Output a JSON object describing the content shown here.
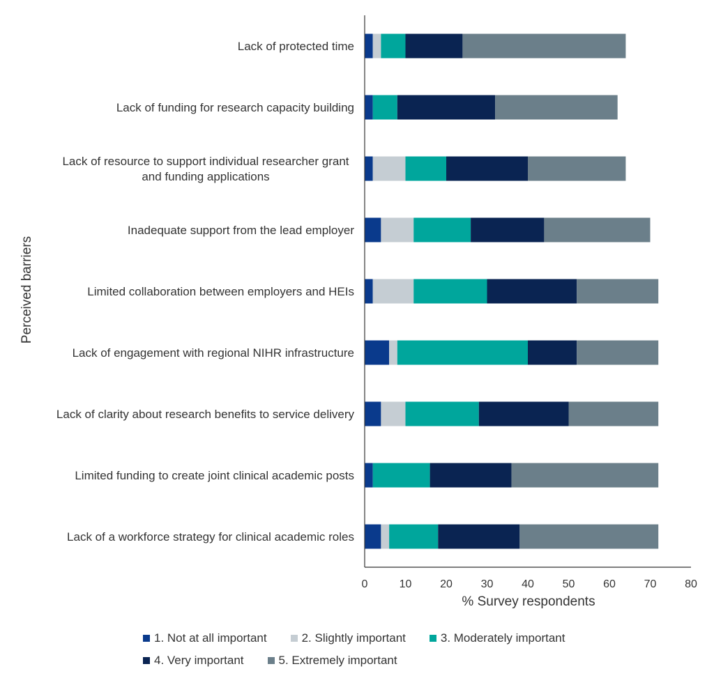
{
  "chart_data": {
    "type": "bar",
    "orientation": "horizontal",
    "stacked": true,
    "title": "",
    "xlabel": "% Survey respondents",
    "ylabel": "Perceived barriers",
    "xlim": [
      0,
      80
    ],
    "xticks": [
      0,
      10,
      20,
      30,
      40,
      50,
      60,
      70,
      80
    ],
    "grid": false,
    "legend_position": "bottom",
    "categories": [
      "Lack of protected time",
      "Lack of funding for research capacity building",
      [
        "Lack of resource to support individual researcher grant",
        "and funding applications"
      ],
      "Inadequate support from the lead employer",
      "Limited collaboration between employers and HEIs",
      "Lack of engagement with regional NIHR infrastructure",
      "Lack of clarity about research benefits to service delivery",
      "Limited funding to create joint clinical academic posts",
      "Lack of a workforce strategy for clinical academic roles"
    ],
    "series": [
      {
        "name": "1. Not at all important",
        "color": "#0a3a8c",
        "values": [
          2,
          2,
          2,
          4,
          2,
          6,
          4,
          2,
          4
        ]
      },
      {
        "name": "2. Slightly important",
        "color": "#c5cdd3",
        "values": [
          2,
          0,
          8,
          8,
          10,
          2,
          6,
          0,
          2
        ]
      },
      {
        "name": "3. Moderately important",
        "color": "#00a69c",
        "values": [
          6,
          6,
          10,
          14,
          18,
          32,
          18,
          14,
          12
        ]
      },
      {
        "name": "4. Very important",
        "color": "#0a2452",
        "values": [
          14,
          24,
          20,
          18,
          22,
          12,
          22,
          20,
          20
        ]
      },
      {
        "name": "5. Extremely important",
        "color": "#6b7f8a",
        "values": [
          40,
          30,
          24,
          26,
          20,
          20,
          22,
          36,
          34
        ]
      }
    ]
  }
}
